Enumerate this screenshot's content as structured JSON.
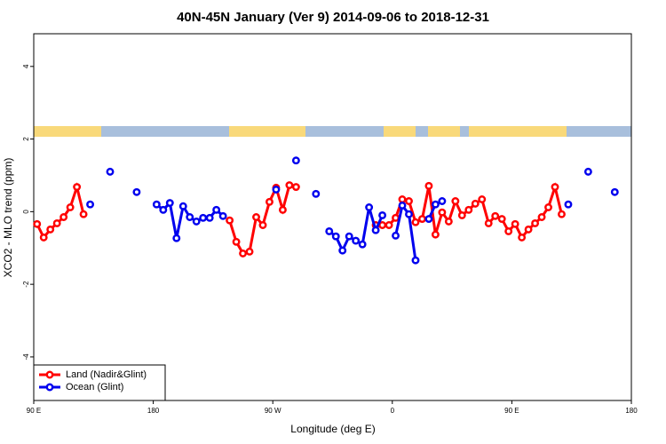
{
  "chart_data": {
    "type": "line",
    "title": "40N-45N January (Ver 9)   2014-09-06 to 2018-12-31",
    "xlabel": "Longitude (deg E)",
    "ylabel": "XCO2 - MLO trend (ppm)",
    "xlim": [
      90,
      540
    ],
    "xticks": [
      {
        "value": 90,
        "label": "90 E"
      },
      180,
      {
        "value": 270,
        "label": "90 W"
      },
      {
        "value": 360,
        "label": "0"
      },
      {
        "value": 450,
        "label": "90 E"
      },
      {
        "value": 540,
        "label": "180"
      }
    ],
    "ylim": [
      -5.2,
      4.9
    ],
    "yticks": [
      -4,
      -2,
      0,
      2,
      4
    ],
    "legend": "bottomleft",
    "series": [
      {
        "name": "Land (Nadir&Glint)",
        "color": "#ff0000",
        "x": [
          92.5,
          97.5,
          102.5,
          107.5,
          112.5,
          117.5,
          122.5,
          127.5,
          null,
          237.5,
          242.5,
          247.5,
          252.5,
          257.5,
          262.5,
          267.5,
          272.5,
          277.5,
          282.5,
          287.5,
          null,
          347.5,
          352.5,
          357.5,
          362.5,
          367.5,
          372.5,
          377.5,
          382.5,
          387.5,
          392.5,
          397.5,
          402.5,
          407.5,
          412.5,
          417.5,
          422.5,
          427.5,
          432.5,
          437.5,
          442.5,
          447.5,
          452.5,
          457.5,
          462.5,
          467.5,
          472.5,
          477.5,
          482.5,
          487.5
        ],
        "values": [
          -0.34,
          -0.71,
          -0.49,
          -0.32,
          -0.15,
          0.12,
          0.68,
          -0.07,
          null,
          -0.24,
          -0.83,
          -1.15,
          -1.1,
          -0.15,
          -0.37,
          0.27,
          0.66,
          0.05,
          0.73,
          0.68,
          null,
          -0.37,
          -0.37,
          -0.37,
          -0.17,
          0.34,
          0.29,
          -0.29,
          -0.2,
          0.71,
          -0.63,
          -0.02,
          -0.27,
          0.29,
          -0.1,
          0.05,
          0.22,
          0.34,
          -0.32,
          -0.12,
          -0.2,
          -0.54,
          -0.34,
          -0.71,
          -0.49,
          -0.32,
          -0.15,
          0.12,
          0.68,
          -0.07
        ]
      },
      {
        "name": "Ocean (Glint)",
        "color": "#0000ee",
        "x": [
          132.5,
          null,
          147.5,
          null,
          167.5,
          null,
          182.5,
          187.5,
          192.5,
          197.5,
          202.5,
          207.5,
          212.5,
          217.5,
          222.5,
          227.5,
          232.5,
          null,
          272.5,
          null,
          287.5,
          null,
          302.5,
          null,
          312.5,
          317.5,
          322.5,
          327.5,
          332.5,
          337.5,
          342.5,
          347.5,
          352.5,
          null,
          362.5,
          367.5,
          372.5,
          377.5,
          null,
          387.5,
          392.5,
          397.5,
          null,
          492.5,
          null,
          507.5,
          null,
          527.5
        ],
        "values": [
          0.2,
          null,
          1.1,
          null,
          0.54,
          null,
          0.2,
          0.05,
          0.24,
          -0.73,
          0.15,
          -0.15,
          -0.27,
          -0.17,
          -0.17,
          0.05,
          -0.12,
          null,
          0.61,
          null,
          1.41,
          null,
          0.49,
          null,
          -0.54,
          -0.68,
          -1.07,
          -0.68,
          -0.8,
          -0.9,
          0.12,
          -0.51,
          -0.1,
          null,
          -0.66,
          0.17,
          -0.07,
          -1.34,
          null,
          -0.2,
          0.2,
          0.29,
          null,
          0.2,
          null,
          1.1,
          null,
          0.54
        ]
      }
    ]
  }
}
